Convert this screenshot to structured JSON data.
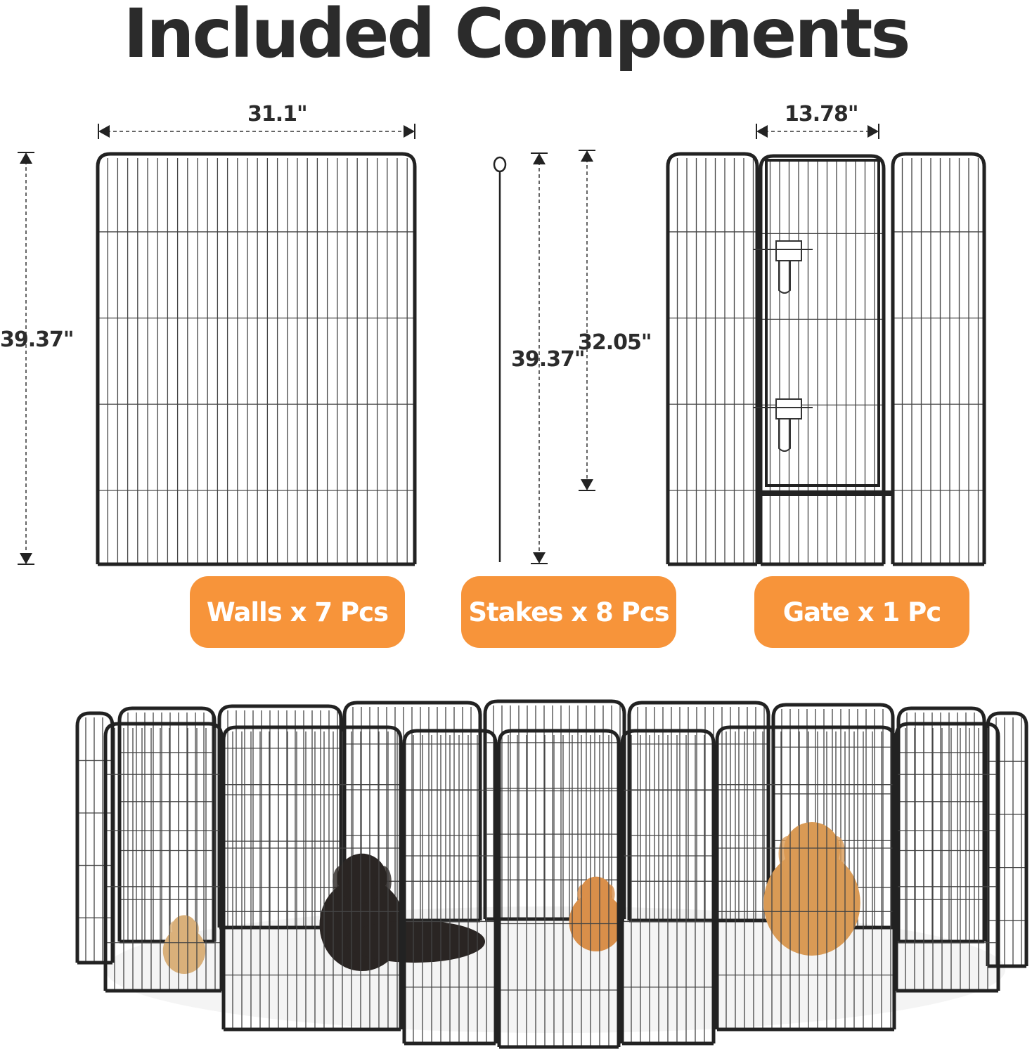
{
  "title": "Included Components",
  "accent_color": "#F7943A",
  "dimensions": {
    "wall_width": "31.1\"",
    "wall_height": "39.37\"",
    "stake_length": "39.37\"",
    "stake_height": "32.05\"",
    "gate_door_width": "13.78\""
  },
  "components": [
    {
      "label": "Walls x 7 Pcs"
    },
    {
      "label": "Stakes x 8 Pcs"
    },
    {
      "label": "Gate x 1 Pc"
    }
  ]
}
